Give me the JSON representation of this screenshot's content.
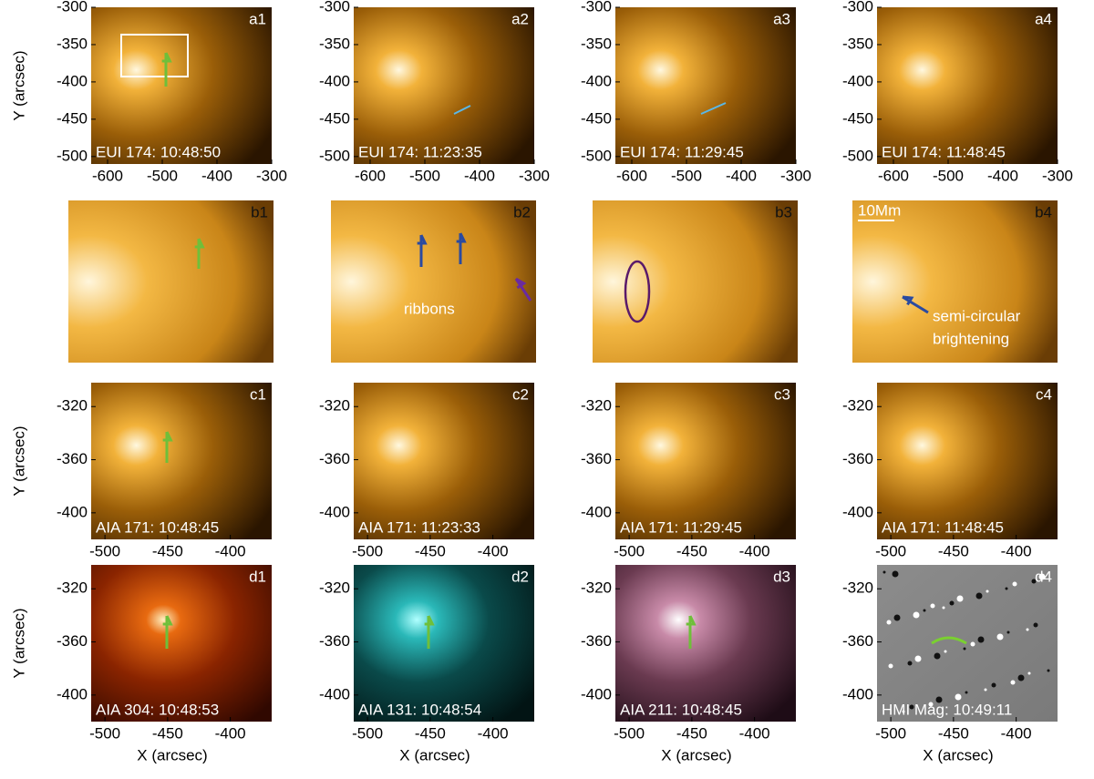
{
  "rows": [
    {
      "xlim": [
        -630,
        -300
      ],
      "ylim": [
        -510,
        -300
      ],
      "xticks": [
        -600,
        -500,
        -400,
        -300
      ],
      "yticks": [
        -300,
        -350,
        -400,
        -450,
        -500
      ],
      "ylabel": "Y (arcsec)",
      "panels": [
        {
          "label": "a1",
          "caption": "EUI 174: 10:48:50"
        },
        {
          "label": "a2",
          "caption": "EUI 174: 11:23:35"
        },
        {
          "label": "a3",
          "caption": "EUI 174: 11:29:45"
        },
        {
          "label": "a4",
          "caption": "EUI 174: 11:48:45"
        }
      ]
    },
    {
      "panels": [
        {
          "label": "b1"
        },
        {
          "label": "b2",
          "annotation": [
            "ribbons"
          ]
        },
        {
          "label": "b3"
        },
        {
          "label": "b4",
          "scale": "10Mm",
          "annotation": [
            "semi-circular",
            "brightening"
          ]
        }
      ]
    },
    {
      "xlim": [
        -511,
        -367
      ],
      "ylim": [
        -420,
        -302
      ],
      "xticks": [
        -500,
        -450,
        -400
      ],
      "yticks": [
        -320,
        -360,
        -400
      ],
      "ylabel": "Y (arcsec)",
      "panels": [
        {
          "label": "c1",
          "caption": "AIA 171: 10:48:45"
        },
        {
          "label": "c2",
          "caption": "AIA 171: 11:23:33"
        },
        {
          "label": "c3",
          "caption": "AIA 171: 11:29:45"
        },
        {
          "label": "c4",
          "caption": "AIA 171: 11:48:45"
        }
      ]
    },
    {
      "xlim": [
        -511,
        -367
      ],
      "ylim": [
        -420,
        -302
      ],
      "xticks": [
        -500,
        -450,
        -400
      ],
      "yticks": [
        -320,
        -360,
        -400
      ],
      "ylabel": "Y (arcsec)",
      "xlabel": "X (arcsec)",
      "panels": [
        {
          "label": "d1",
          "caption": "AIA 304: 10:48:53"
        },
        {
          "label": "d2",
          "caption": "AIA 131: 10:48:54"
        },
        {
          "label": "d3",
          "caption": "AIA 211: 10:48:45"
        },
        {
          "label": "d4",
          "caption": "HMI Mag: 10:49:11"
        }
      ]
    }
  ]
}
